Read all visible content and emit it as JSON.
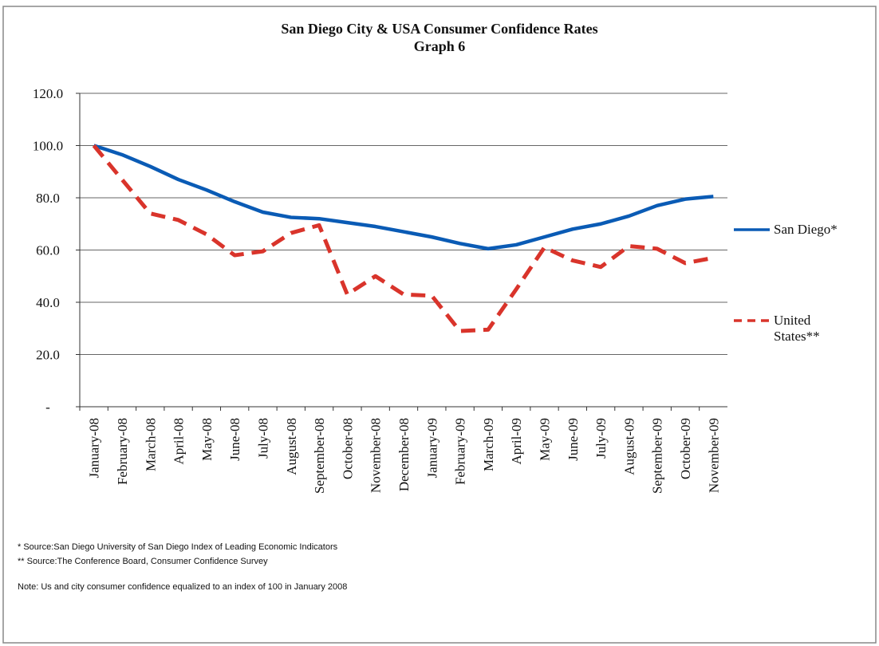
{
  "chart_data": {
    "type": "line",
    "title": "San Diego City & USA Consumer Confidence Rates",
    "subtitle": "Graph 6",
    "categories": [
      "January-08",
      "February-08",
      "March-08",
      "April-08",
      "May-08",
      "June-08",
      "July-08",
      "August-08",
      "September-08",
      "October-08",
      "November-08",
      "December-08",
      "January-09",
      "February-09",
      "March-09",
      "April-09",
      "May-09",
      "June-09",
      "July-09",
      "August-09",
      "September-09",
      "October-09",
      "November-09"
    ],
    "series": [
      {
        "name": "San Diego*",
        "color": "#0a5bb5",
        "style": "solid",
        "values": [
          100,
          96.5,
          92,
          87,
          83,
          78.5,
          74.5,
          72.5,
          72,
          70.5,
          69,
          67,
          65,
          62.5,
          60.5,
          62,
          65,
          68,
          70,
          73,
          77,
          79.5,
          80.5
        ]
      },
      {
        "name": "United States**",
        "color": "#d9342b",
        "style": "dashed",
        "values": [
          100,
          87,
          74,
          71.5,
          66,
          58,
          59.5,
          66.5,
          69.5,
          43,
          50,
          43,
          42.5,
          29,
          29.5,
          45,
          61,
          56,
          53.5,
          61.5,
          60.5,
          55,
          57
        ]
      }
    ],
    "ylim": [
      0,
      120
    ],
    "yticks": [
      {
        "value": 0,
        "label": "-"
      },
      {
        "value": 20,
        "label": "20.0"
      },
      {
        "value": 40,
        "label": "40.0"
      },
      {
        "value": 60,
        "label": "60.0"
      },
      {
        "value": 80,
        "label": "80.0"
      },
      {
        "value": 100,
        "label": "100.0"
      },
      {
        "value": 120,
        "label": "120.0"
      }
    ],
    "grid": true,
    "legend": "right",
    "annotations": [
      "* Source:San Diego University of San Diego Index of Leading Economic Indicators",
      "** Source:The Conference Board, Consumer Confidence Survey",
      "Note: Us and city consumer confidence equalized to an index of 100 in January 2008"
    ]
  }
}
